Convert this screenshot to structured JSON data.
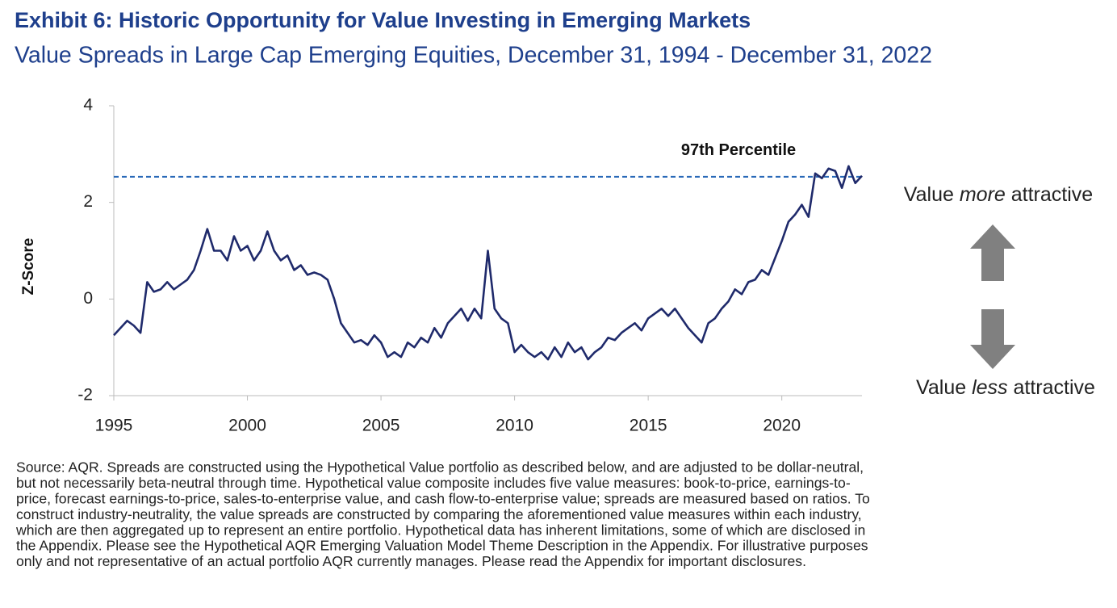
{
  "chart_data": {
    "type": "line",
    "title": "Exhibit 6: Historic Opportunity for Value Investing in Emerging Markets",
    "subtitle": "Value Spreads in Large Cap Emerging Equities, December 31, 1994 - December 31, 2022",
    "y_label": "Z-Score",
    "xlim": [
      1995,
      2023
    ],
    "xticks": [
      1995,
      2000,
      2005,
      2010,
      2015,
      2020
    ],
    "ylim": [
      -2,
      4
    ],
    "yticks": [
      -2,
      0,
      2,
      4
    ],
    "x": [
      1995,
      1995.25,
      1995.5,
      1995.75,
      1996,
      1996.25,
      1996.5,
      1996.75,
      1997,
      1997.25,
      1997.5,
      1997.75,
      1998,
      1998.25,
      1998.5,
      1998.75,
      1999,
      1999.25,
      1999.5,
      1999.75,
      2000,
      2000.25,
      2000.5,
      2000.75,
      2001,
      2001.25,
      2001.5,
      2001.75,
      2002,
      2002.25,
      2002.5,
      2002.75,
      2003,
      2003.25,
      2003.5,
      2003.75,
      2004,
      2004.25,
      2004.5,
      2004.75,
      2005,
      2005.25,
      2005.5,
      2005.75,
      2006,
      2006.25,
      2006.5,
      2006.75,
      2007,
      2007.25,
      2007.5,
      2007.75,
      2008,
      2008.25,
      2008.5,
      2008.75,
      2009,
      2009.25,
      2009.5,
      2009.75,
      2010,
      2010.25,
      2010.5,
      2010.75,
      2011,
      2011.25,
      2011.5,
      2011.75,
      2012,
      2012.25,
      2012.5,
      2012.75,
      2013,
      2013.25,
      2013.5,
      2013.75,
      2014,
      2014.25,
      2014.5,
      2014.75,
      2015,
      2015.25,
      2015.5,
      2015.75,
      2016,
      2016.25,
      2016.5,
      2016.75,
      2017,
      2017.25,
      2017.5,
      2017.75,
      2018,
      2018.25,
      2018.5,
      2018.75,
      2019,
      2019.25,
      2019.5,
      2019.75,
      2020,
      2020.25,
      2020.5,
      2020.75,
      2021,
      2021.25,
      2021.5,
      2021.75,
      2022,
      2022.25,
      2022.5,
      2022.75,
      2023
    ],
    "series": [
      {
        "name": "Value spread",
        "color": "#1f2a6b",
        "values": [
          -0.75,
          -0.6,
          -0.45,
          -0.55,
          -0.7,
          0.35,
          0.15,
          0.2,
          0.35,
          0.2,
          0.3,
          0.4,
          0.6,
          1.0,
          1.45,
          1.0,
          1.0,
          0.8,
          1.3,
          1.0,
          1.1,
          0.8,
          1.0,
          1.4,
          1.0,
          0.8,
          0.9,
          0.6,
          0.7,
          0.5,
          0.55,
          0.5,
          0.4,
          0.0,
          -0.5,
          -0.7,
          -0.9,
          -0.85,
          -0.95,
          -0.75,
          -0.9,
          -1.2,
          -1.1,
          -1.2,
          -0.9,
          -1.0,
          -0.8,
          -0.9,
          -0.6,
          -0.8,
          -0.5,
          -0.35,
          -0.2,
          -0.45,
          -0.2,
          -0.4,
          1.0,
          -0.2,
          -0.4,
          -0.5,
          -1.1,
          -0.95,
          -1.1,
          -1.2,
          -1.1,
          -1.25,
          -1.0,
          -1.2,
          -0.9,
          -1.1,
          -1.0,
          -1.25,
          -1.1,
          -1.0,
          -0.8,
          -0.85,
          -0.7,
          -0.6,
          -0.5,
          -0.65,
          -0.4,
          -0.3,
          -0.2,
          -0.35,
          -0.2,
          -0.4,
          -0.6,
          -0.75,
          -0.9,
          -0.5,
          -0.4,
          -0.2,
          -0.05,
          0.2,
          0.1,
          0.35,
          0.4,
          0.6,
          0.5,
          0.85,
          1.2,
          1.6,
          1.75,
          1.95,
          1.7,
          2.6,
          2.5,
          2.7,
          2.65,
          2.3,
          2.75,
          2.4,
          2.55
        ]
      }
    ],
    "threshold": {
      "value": 2.53,
      "color": "#2a6ab8",
      "label": "97th Percentile"
    },
    "upper_note": {
      "before": "Value",
      "emphasis": "more",
      "after": "attractive"
    },
    "lower_note": {
      "before": "Value",
      "emphasis": "less",
      "after": "attractive"
    },
    "source_lines": [
      "Source: AQR. Spreads are constructed using the Hypothetical Value portfolio as described below, and are adjusted to be dollar-neutral,",
      "but not necessarily beta-neutral through time. Hypothetical value composite includes five value measures: book-to-price, earnings-to-",
      "price, forecast earnings-to-price, sales-to-enterprise value, and cash flow-to-enterprise value; spreads are measured based on ratios. To",
      "construct industry-neutrality, the value spreads are constructed by comparing the aforementioned value measures within each industry,",
      "which are then aggregated up to represent an entire portfolio. Hypothetical data has inherent limitations, some of which are disclosed in",
      "the Appendix. Please see the Hypothetical AQR Emerging Valuation Model Theme Description in the Appendix. For illustrative purposes",
      "only and not representative of an actual portfolio AQR currently manages. Please read the Appendix for important disclosures."
    ]
  }
}
